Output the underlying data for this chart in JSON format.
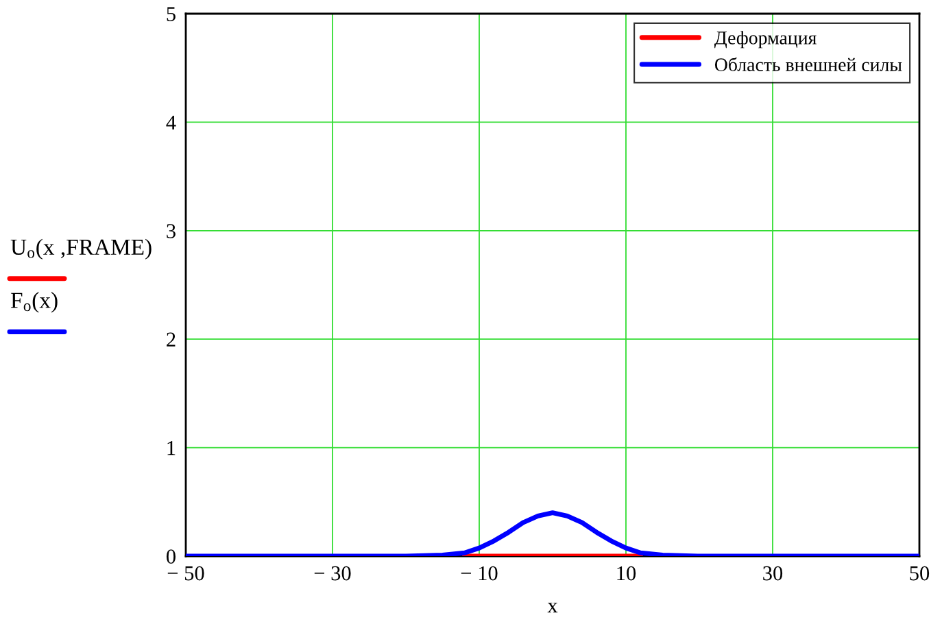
{
  "chart_data": {
    "type": "line",
    "xlabel": "x",
    "ylabel": [
      "U$_{o}$(x ,FRAME)",
      "F$_{o}$(x)"
    ],
    "xlim": [
      -50,
      50
    ],
    "ylim": [
      0,
      5
    ],
    "xticks": [
      {
        "value": -50,
        "label": "− 50"
      },
      {
        "value": -30,
        "label": "− 30"
      },
      {
        "value": -10,
        "label": "− 10"
      },
      10,
      30,
      50
    ],
    "yticks": [
      0,
      1,
      2,
      3,
      4,
      5
    ],
    "grid": true,
    "legend": "top right",
    "series": [
      {
        "name": "Деформация",
        "color": "#ff0000",
        "x": [
          -12,
          -6,
          0,
          6,
          12
        ],
        "values": [
          0,
          0,
          0,
          0,
          0
        ]
      },
      {
        "name": "Область внешней силы",
        "color": "#0000ff",
        "x": [
          -50,
          -20,
          -15,
          -12,
          -10,
          -8,
          -6,
          -4,
          -2,
          0,
          2,
          4,
          6,
          8,
          10,
          12,
          15,
          20,
          50
        ],
        "values": [
          0,
          0,
          0.01,
          0.03,
          0.075,
          0.14,
          0.22,
          0.31,
          0.37,
          0.4,
          0.37,
          0.31,
          0.22,
          0.14,
          0.075,
          0.03,
          0.01,
          0,
          0
        ]
      }
    ]
  }
}
